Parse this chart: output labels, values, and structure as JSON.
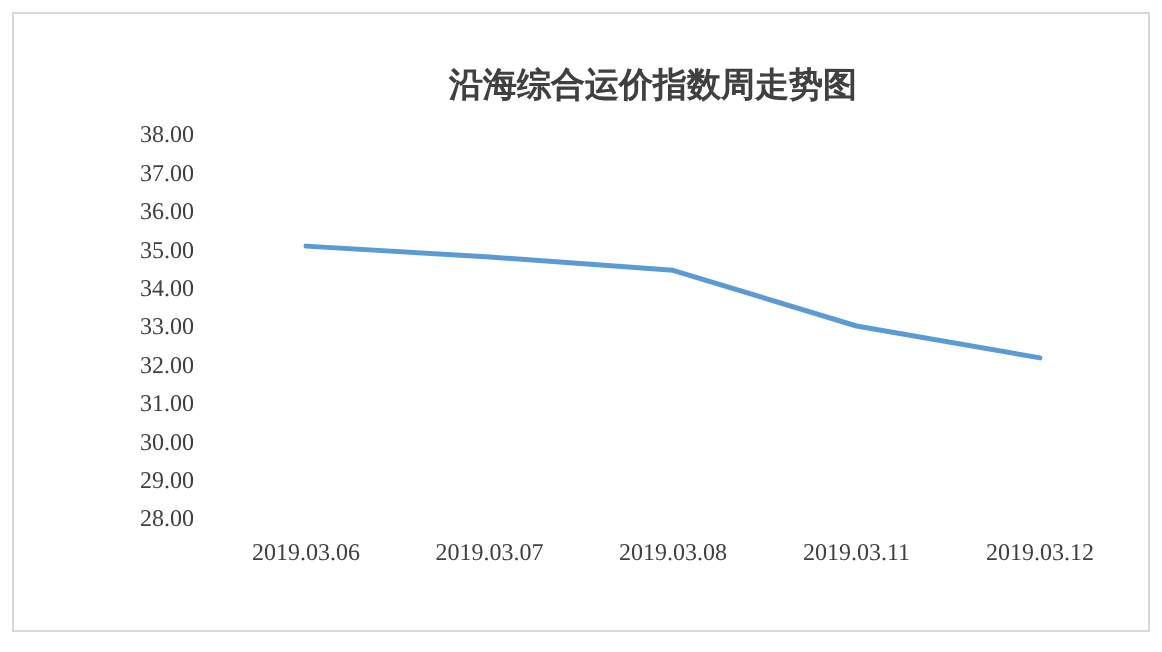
{
  "chart_data": {
    "type": "line",
    "title": "沿海综合运价指数周走势图",
    "categories": [
      "2019.03.06",
      "2019.03.07",
      "2019.03.08",
      "2019.03.11",
      "2019.03.12"
    ],
    "series": [
      {
        "color": "#5b9bd5",
        "values": [
          35.08,
          34.8,
          34.45,
          33.0,
          32.17
        ]
      }
    ],
    "ylim": [
      28,
      38
    ],
    "yticks": [
      {
        "value": 28,
        "label": "28.00"
      },
      {
        "value": 29,
        "label": "29.00"
      },
      {
        "value": 30,
        "label": "30.00"
      },
      {
        "value": 31,
        "label": "31.00"
      },
      {
        "value": 32,
        "label": "32.00"
      },
      {
        "value": 33,
        "label": "33.00"
      },
      {
        "value": 34,
        "label": "34.00"
      },
      {
        "value": 35,
        "label": "35.00"
      },
      {
        "value": 36,
        "label": "36.00"
      },
      {
        "value": 37,
        "label": "37.00"
      },
      {
        "value": 38,
        "label": "38.00"
      }
    ],
    "marker": "none",
    "line_style": "solid"
  }
}
